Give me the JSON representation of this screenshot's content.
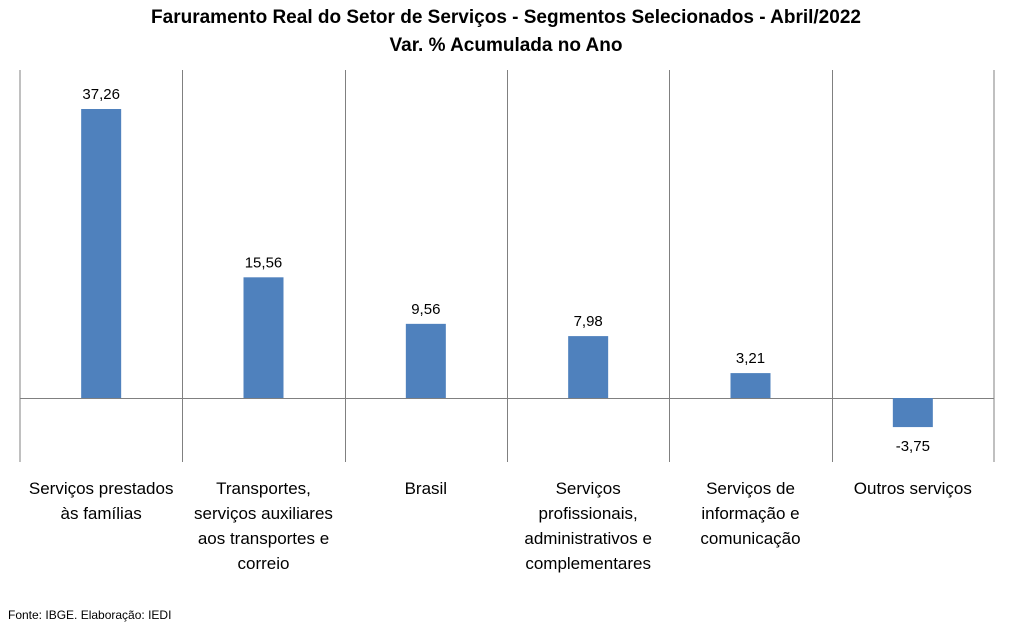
{
  "chart_data": {
    "type": "bar",
    "title": "Faruramento Real do Setor de Serviços - Segmentos Selecionados - Abril/2022",
    "subtitle": "Var. % Acumulada no Ano",
    "categories": [
      [
        "Serviços prestados",
        "às famílias"
      ],
      [
        "Transportes,",
        "serviços auxiliares",
        "aos transportes e",
        "correio"
      ],
      [
        "Brasil"
      ],
      [
        "Serviços",
        "profissionais,",
        "administrativos e",
        "complementares"
      ],
      [
        "Serviços de",
        "informação e",
        "comunicação"
      ],
      [
        "Outros serviços"
      ]
    ],
    "values": [
      37.26,
      15.56,
      9.56,
      7.98,
      3.21,
      -3.75
    ],
    "value_labels": [
      "37,26",
      "15,56",
      "9,56",
      "7,98",
      "3,21",
      "-3,75"
    ],
    "ylim": [
      -8,
      45
    ],
    "grid": "vertical separators",
    "bar_color": "#4F81BD"
  },
  "source": "Fonte: IBGE. Elaboração: IEDI"
}
